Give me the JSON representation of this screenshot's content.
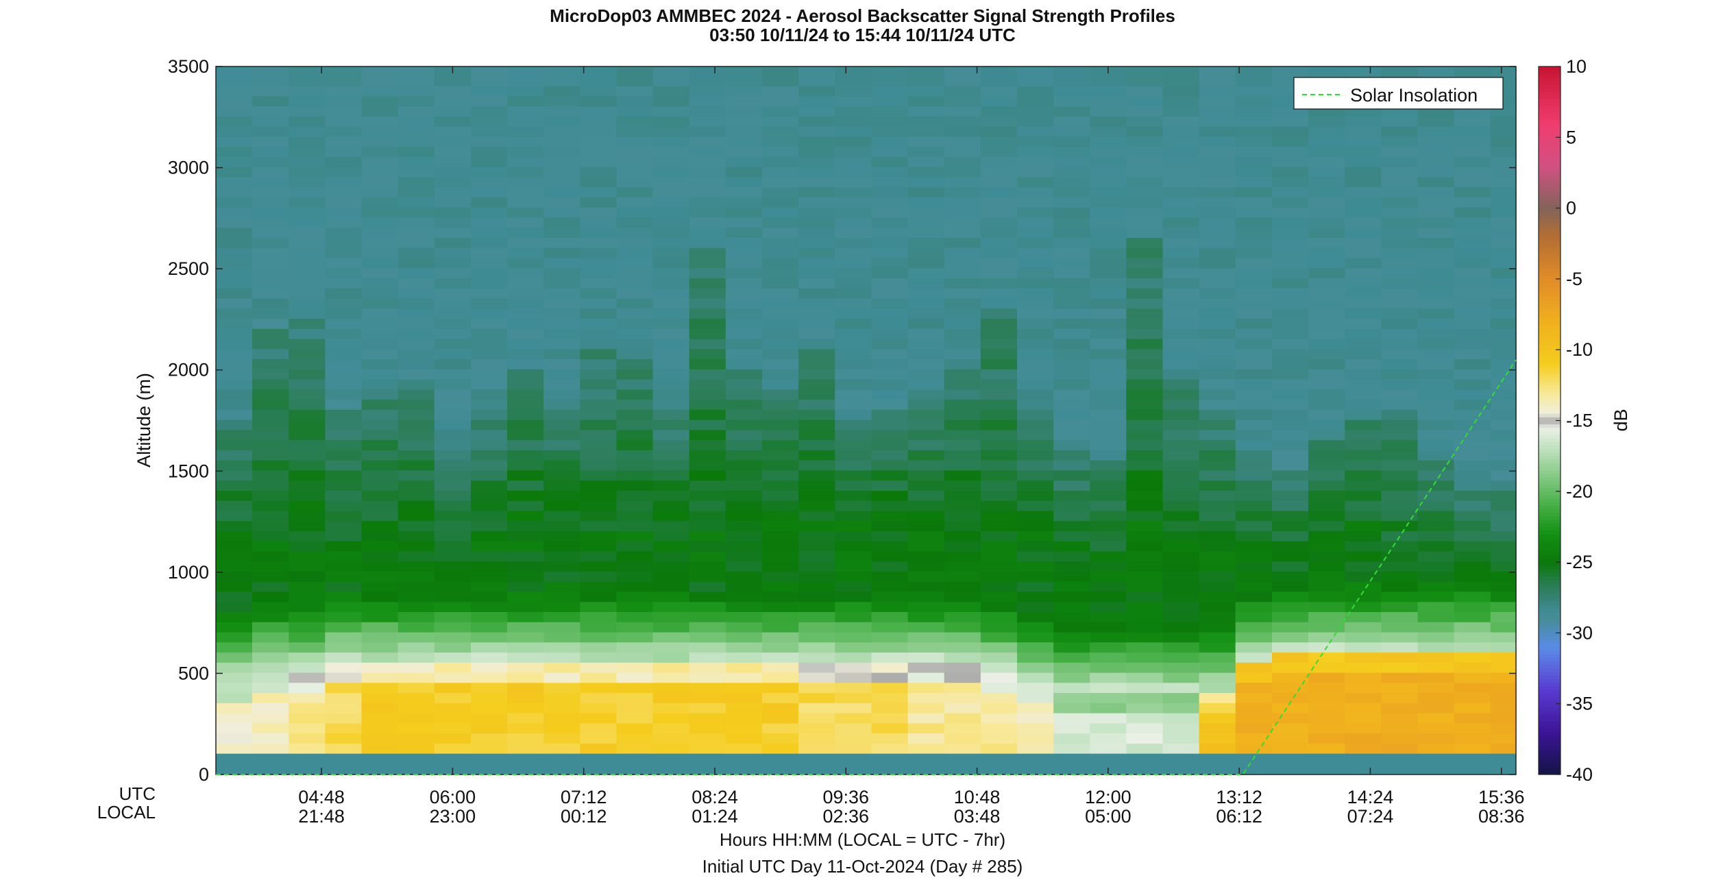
{
  "title": "MicroDop03 AMMBEC 2024 - Aerosol Backscatter Signal Strength Profiles",
  "subtitle": "03:50 10/11/24 to 15:44 10/11/24  UTC",
  "ylabel": "Altitude (m)",
  "x_row_labels": {
    "utc": "UTC",
    "local": "LOCAL"
  },
  "xlabel_line1": "Hours HH:MM  (LOCAL = UTC - 7hr)",
  "xlabel_line2": "Initial UTC Day 11-Oct-2024 (Day # 285)",
  "legend_label": "Solar Insolation",
  "colorbar_label": "dB",
  "chart_data": {
    "type": "heatmap",
    "title": "MicroDop03 AMMBEC 2024 - Aerosol Backscatter Signal Strength Profiles",
    "subtitle": "03:50 10/11/24 to 15:44 10/11/24  UTC",
    "ylabel": "Altitude (m)",
    "ylim": [
      0,
      3500
    ],
    "y_ticks": [
      0,
      500,
      1000,
      1500,
      2000,
      2500,
      3000,
      3500
    ],
    "x_range_utc": [
      "03:50",
      "15:44"
    ],
    "x_ticks": [
      {
        "utc": "04:48",
        "local": "21:48"
      },
      {
        "utc": "06:00",
        "local": "23:00"
      },
      {
        "utc": "07:12",
        "local": "00:12"
      },
      {
        "utc": "08:24",
        "local": "01:24"
      },
      {
        "utc": "09:36",
        "local": "02:36"
      },
      {
        "utc": "10:48",
        "local": "03:48"
      },
      {
        "utc": "12:00",
        "local": "05:00"
      },
      {
        "utc": "13:12",
        "local": "06:12"
      },
      {
        "utc": "14:24",
        "local": "07:24"
      },
      {
        "utc": "15:36",
        "local": "08:36"
      }
    ],
    "colorbar": {
      "label": "dB",
      "range": [
        -40,
        10
      ],
      "ticks": [
        10,
        5,
        0,
        -5,
        -10,
        -15,
        -20,
        -25,
        -30,
        -35,
        -40
      ]
    },
    "legend": {
      "entries": [
        "Solar Insolation"
      ],
      "placement": "top-right"
    },
    "solar_insolation_line": {
      "color": "#33dd33",
      "points": [
        [
          "03:50",
          0
        ],
        [
          "13:14",
          0
        ],
        [
          "15:44",
          2050
        ]
      ]
    },
    "bin_times_utc": [
      "03:50",
      "04:10",
      "04:30",
      "04:50",
      "05:10",
      "05:30",
      "05:50",
      "06:10",
      "06:30",
      "06:50",
      "07:10",
      "07:30",
      "07:50",
      "08:10",
      "08:30",
      "08:50",
      "09:10",
      "09:30",
      "09:50",
      "10:10",
      "10:30",
      "10:50",
      "11:10",
      "11:30",
      "11:50",
      "12:10",
      "12:30",
      "12:50",
      "13:10",
      "13:30",
      "13:50",
      "14:10",
      "14:30",
      "14:50",
      "15:10",
      "15:30"
    ],
    "bin_altitudes_m": [
      150,
      200,
      250,
      300,
      350,
      400,
      450,
      500,
      550,
      600,
      650,
      700,
      750,
      800,
      850,
      900,
      950,
      1000,
      1050,
      1100,
      1150,
      1200,
      1250,
      1300,
      1350,
      1400,
      1450,
      1500,
      1550,
      1600,
      1650,
      1700,
      1750,
      1800,
      1850,
      1900,
      1950,
      2000,
      2050,
      2100,
      2150,
      2200,
      2250,
      2300,
      2350,
      2400,
      2450,
      2500,
      2550,
      2600,
      2650,
      2700,
      2750,
      2800,
      2850,
      2900,
      2950,
      3000,
      3050,
      3100,
      3150,
      3200,
      3250,
      3300,
      3350,
      3400,
      3450
    ],
    "bin_height_m": 90,
    "max_signal_top_m": [
      1150,
      1150,
      1150,
      1150,
      1150,
      1150,
      1150,
      1200,
      1250,
      1250,
      1200,
      1200,
      1200,
      1200,
      1250,
      1300,
      1300,
      1300,
      1250,
      1250,
      1300,
      1200,
      1200,
      1100,
      1000,
      1200,
      1150,
      1100,
      1050,
      1000,
      1150,
      1200,
      1000,
      950,
      900,
      900
    ],
    "boundary_layer_top_m": [
      1750,
      2200,
      2250,
      1800,
      1900,
      1950,
      1600,
      1800,
      2000,
      1800,
      2100,
      2100,
      1800,
      2600,
      2000,
      1900,
      2100,
      1800,
      1800,
      1900,
      2000,
      2300,
      1800,
      1600,
      1600,
      2650,
      2000,
      1800,
      1600,
      1500,
      1700,
      1800,
      1800,
      1600,
      1500,
      1400
    ],
    "surface_layer_top_m": [
      450,
      500,
      500,
      550,
      550,
      550,
      550,
      550,
      550,
      550,
      550,
      550,
      550,
      550,
      550,
      550,
      550,
      550,
      550,
      550,
      550,
      500,
      450,
      400,
      400,
      400,
      400,
      400,
      550,
      600,
      600,
      600,
      600,
      600,
      600,
      600
    ],
    "surface_layer_db": [
      -14,
      -14,
      -13,
      -12,
      -11,
      -11,
      -11,
      -11,
      -11,
      -11,
      -11,
      -11,
      -11,
      -11,
      -11,
      -11,
      -12,
      -12,
      -12,
      -13,
      -13,
      -13,
      -14,
      -16,
      -16,
      -16,
      -16,
      -10,
      -8,
      -8,
      -8,
      -8,
      -8,
      -8,
      -8,
      -8
    ],
    "clear_air_db": -28.5
  }
}
